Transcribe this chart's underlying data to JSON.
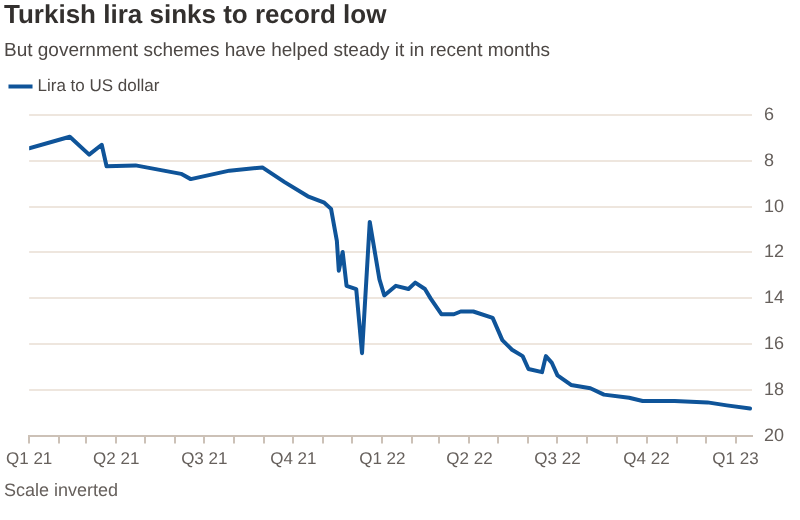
{
  "chart_data": {
    "type": "line",
    "title": "Turkish lira sinks to record low",
    "subtitle": "But government schemes have helped steady it in recent months",
    "annotations": [
      "Scale inverted"
    ],
    "x": [
      "2021-01-01",
      "2021-02-12",
      "2021-03-04",
      "2021-03-17",
      "2021-03-22",
      "2021-04-21",
      "2021-06-07",
      "2021-06-17",
      "2021-07-27",
      "2021-08-30",
      "2021-09-22",
      "2021-10-16",
      "2021-11-02",
      "2021-11-09",
      "2021-11-15",
      "2021-11-17",
      "2021-11-21",
      "2021-11-25",
      "2021-12-05",
      "2021-12-11",
      "2021-12-19",
      "2021-12-29",
      "2022-01-03",
      "2022-01-15",
      "2022-01-28",
      "2022-02-04",
      "2022-02-14",
      "2022-02-20",
      "2022-03-03",
      "2022-03-16",
      "2022-03-23",
      "2022-04-05",
      "2022-04-25",
      "2022-05-05",
      "2022-05-15",
      "2022-05-26",
      "2022-06-01",
      "2022-06-15",
      "2022-06-19",
      "2022-06-25",
      "2022-07-01",
      "2022-07-15",
      "2022-08-04",
      "2022-08-18",
      "2022-09-13",
      "2022-09-27",
      "2022-10-30",
      "2022-12-03",
      "2022-12-23",
      "2023-01-16"
    ],
    "series": [
      {
        "name": "Lira to US dollar",
        "color": "#0f5499",
        "values": [
          7.45,
          6.95,
          7.73,
          7.3,
          8.24,
          8.2,
          8.57,
          8.8,
          8.43,
          8.29,
          8.93,
          9.55,
          9.83,
          10.1,
          11.5,
          12.8,
          11.98,
          13.46,
          13.6,
          16.4,
          10.67,
          13.18,
          13.88,
          13.46,
          13.6,
          13.32,
          13.6,
          14.02,
          14.7,
          14.7,
          14.58,
          14.58,
          14.86,
          15.83,
          16.25,
          16.53,
          17.09,
          17.23,
          16.53,
          16.81,
          17.37,
          17.79,
          17.93,
          18.21,
          18.35,
          18.49,
          18.49,
          18.55,
          18.68,
          18.82
        ]
      }
    ],
    "xlim": [
      "2021-01-01",
      "2023-01-18"
    ],
    "xticks": [
      {
        "value": "2021-01-01",
        "label": "Q1 21"
      },
      {
        "value": "2021-02-01",
        "label": null
      },
      {
        "value": "2021-03-01",
        "label": null
      },
      {
        "value": "2021-04-01",
        "label": "Q2 21"
      },
      {
        "value": "2021-05-01",
        "label": null
      },
      {
        "value": "2021-06-01",
        "label": null
      },
      {
        "value": "2021-07-01",
        "label": "Q3 21"
      },
      {
        "value": "2021-08-01",
        "label": null
      },
      {
        "value": "2021-09-01",
        "label": null
      },
      {
        "value": "2021-10-01",
        "label": "Q4 21"
      },
      {
        "value": "2021-11-01",
        "label": null
      },
      {
        "value": "2021-12-01",
        "label": null
      },
      {
        "value": "2022-01-01",
        "label": "Q1 22"
      },
      {
        "value": "2022-02-01",
        "label": null
      },
      {
        "value": "2022-03-01",
        "label": null
      },
      {
        "value": "2022-04-01",
        "label": "Q2 22"
      },
      {
        "value": "2022-05-01",
        "label": null
      },
      {
        "value": "2022-06-01",
        "label": null
      },
      {
        "value": "2022-07-01",
        "label": "Q3 22"
      },
      {
        "value": "2022-08-01",
        "label": null
      },
      {
        "value": "2022-09-01",
        "label": null
      },
      {
        "value": "2022-10-01",
        "label": "Q4 22"
      },
      {
        "value": "2022-11-01",
        "label": null
      },
      {
        "value": "2022-12-01",
        "label": null
      },
      {
        "value": "2023-01-01",
        "label": "Q1 23"
      }
    ],
    "ylim": [
      20,
      6
    ],
    "yticks": [
      6,
      8,
      10,
      12,
      14,
      16,
      18,
      20
    ],
    "grid": "y",
    "legend": "top left",
    "marker": "none",
    "line_style": "solid"
  }
}
